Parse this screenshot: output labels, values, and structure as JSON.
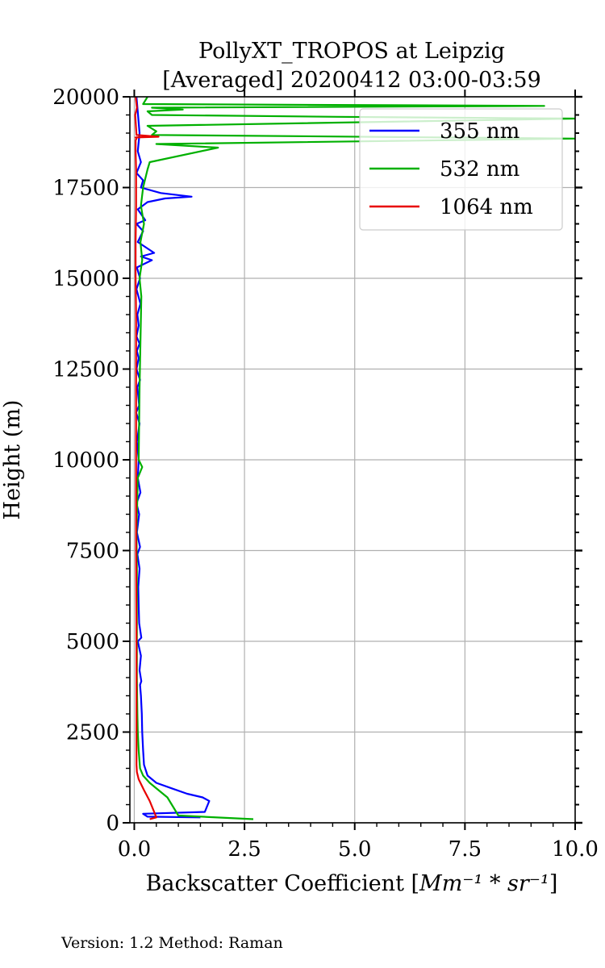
{
  "chart_data": {
    "type": "line",
    "title_line1": "PollyXT_TROPOS at Leipzig",
    "title_line2": "[Averaged] 20200412 03:00-03:59",
    "xlabel_main": "Backscatter Coefficient [",
    "xlabel_math": "Mm⁻¹ * sr⁻¹",
    "xlabel_close": "]",
    "ylabel": "Height (m)",
    "xlim": [
      -0.1,
      10.0
    ],
    "ylim": [
      0,
      20000
    ],
    "xticks": [
      0.0,
      2.5,
      5.0,
      7.5,
      10.0
    ],
    "xtick_labels": [
      "0.0",
      "2.5",
      "5.0",
      "7.5",
      "10.0"
    ],
    "yticks": [
      0,
      2500,
      5000,
      7500,
      10000,
      12500,
      15000,
      17500,
      20000
    ],
    "ytick_labels": [
      "0",
      "2500",
      "5000",
      "7500",
      "10000",
      "12500",
      "15000",
      "17500",
      "20000"
    ],
    "grid": true,
    "legend_position": "top-right",
    "footer": "Version: 1.2  Method: Raman",
    "series": [
      {
        "name": "355 nm",
        "color": "#0000ff",
        "x": [
          1.5,
          0.3,
          0.2,
          1.6,
          1.7,
          1.55,
          1.2,
          0.85,
          0.5,
          0.3,
          0.22,
          0.2,
          0.18,
          0.17,
          0.15,
          0.13,
          0.16,
          0.12,
          0.15,
          0.08,
          0.16,
          0.11,
          0.1,
          0.09,
          0.12,
          0.07,
          0.13,
          0.06,
          0.11,
          0.05,
          0.14,
          0.08,
          0.1,
          0.06,
          0.12,
          0.04,
          0.11,
          0.07,
          0.13,
          0.05,
          0.1,
          0.06,
          0.12,
          0.05,
          0.1,
          0.07,
          0.14,
          0.05,
          0.13,
          0.06,
          0.4,
          0.15,
          0.45,
          0.08,
          0.2,
          0.05,
          0.25,
          0.08,
          0.3,
          0.7,
          1.3,
          0.6,
          0.15,
          0.2,
          0.05,
          0.15,
          0.08,
          0.12,
          0.05
        ],
        "y": [
          150,
          170,
          250,
          300,
          600,
          700,
          800,
          950,
          1100,
          1300,
          1600,
          2000,
          2500,
          3000,
          3500,
          3800,
          3900,
          4200,
          4600,
          5000,
          5100,
          5500,
          6000,
          6500,
          7000,
          7400,
          7600,
          8000,
          8500,
          8800,
          9100,
          9500,
          10000,
          10500,
          11000,
          11300,
          11500,
          12000,
          12200,
          12500,
          12800,
          13000,
          13200,
          13400,
          13700,
          14000,
          14300,
          14700,
          15000,
          15300,
          15500,
          15600,
          15700,
          16000,
          16300,
          16500,
          16600,
          16900,
          17100,
          17200,
          17250,
          17350,
          17500,
          17700,
          17900,
          18200,
          18500,
          19000,
          20000
        ]
      },
      {
        "name": "532 nm",
        "color": "#00b000",
        "x": [
          2.7,
          1.0,
          0.9,
          0.75,
          0.55,
          0.35,
          0.2,
          0.13,
          0.1,
          0.08,
          0.07,
          0.06,
          0.06,
          0.06,
          0.06,
          0.05,
          0.07,
          0.08,
          0.18,
          0.1,
          0.12,
          0.16,
          0.12,
          0.18,
          0.14,
          0.22,
          0.15,
          0.2,
          0.3,
          0.35,
          1.9,
          0.5,
          10.0,
          0.4,
          0.5,
          0.3,
          10.0,
          4.6,
          0.4,
          0.3,
          1.1,
          0.4,
          9.3,
          0.2,
          0.3
        ],
        "y": [
          100,
          200,
          400,
          700,
          900,
          1100,
          1300,
          1500,
          2000,
          2500,
          3000,
          4000,
          5000,
          6000,
          7000,
          8000,
          9000,
          9500,
          9800,
          10000,
          12000,
          14500,
          15000,
          15500,
          16000,
          16500,
          17000,
          17500,
          18000,
          18200,
          18600,
          18700,
          18850,
          18950,
          19050,
          19200,
          19400,
          19450,
          19500,
          19600,
          19650,
          19700,
          19750,
          19800,
          20000
        ]
      },
      {
        "name": "1064 nm",
        "color": "#e80000",
        "x": [
          0.35,
          0.5,
          0.45,
          0.35,
          0.22,
          0.1,
          0.06,
          0.05,
          0.05,
          0.05,
          0.04,
          0.04,
          0.04,
          0.04,
          0.03,
          0.03,
          0.04,
          0.04,
          0.03,
          0.03,
          0.05,
          0.03,
          0.55,
          0.05,
          0.02,
          0.06,
          0.03
        ],
        "y": [
          100,
          150,
          300,
          600,
          900,
          1200,
          1400,
          1600,
          2500,
          5000,
          7500,
          10000,
          12500,
          14000,
          15000,
          16000,
          17000,
          18000,
          18500,
          18800,
          18850,
          18880,
          18900,
          18950,
          19500,
          19700,
          20000
        ]
      }
    ]
  }
}
